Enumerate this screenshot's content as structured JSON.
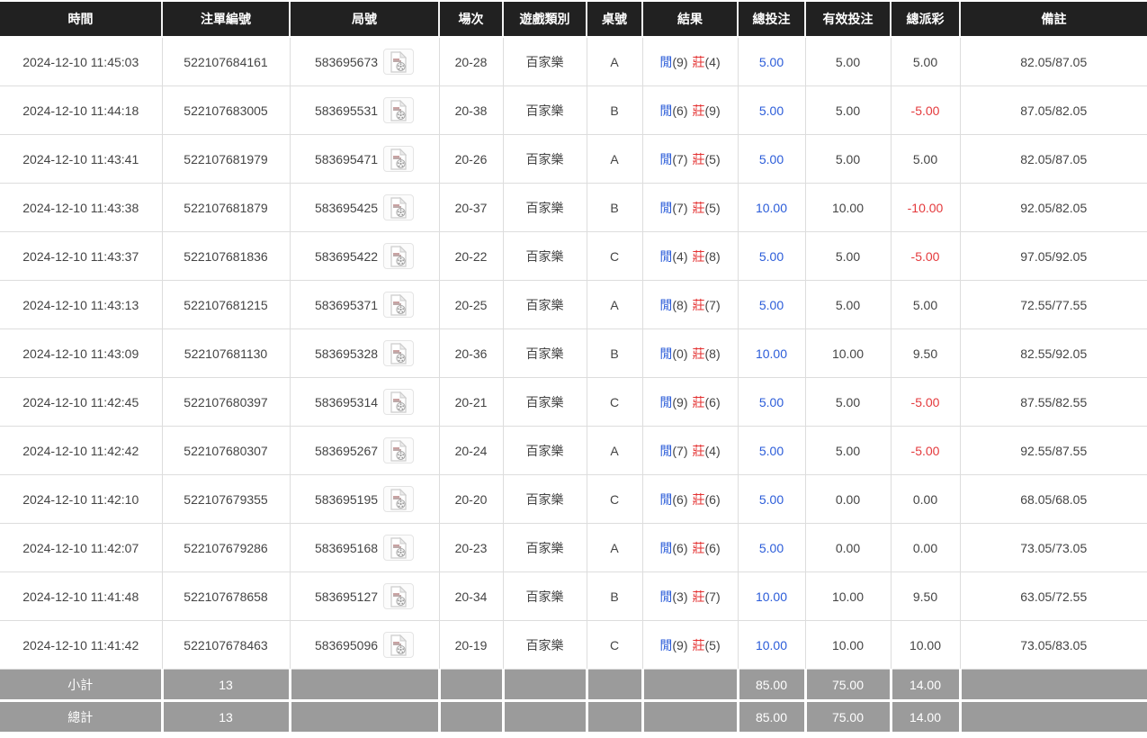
{
  "table": {
    "columns": [
      {
        "key": "time",
        "label": "時間"
      },
      {
        "key": "bet_no",
        "label": "注單編號"
      },
      {
        "key": "round_no",
        "label": "局號"
      },
      {
        "key": "session",
        "label": "場次"
      },
      {
        "key": "game",
        "label": "遊戲類別"
      },
      {
        "key": "table_no",
        "label": "桌號"
      },
      {
        "key": "result",
        "label": "結果"
      },
      {
        "key": "total_bet",
        "label": "總投注"
      },
      {
        "key": "valid_bet",
        "label": "有效投注"
      },
      {
        "key": "payout",
        "label": "總派彩"
      },
      {
        "key": "remark",
        "label": "備註"
      }
    ],
    "result_labels": {
      "player": "閒",
      "banker": "莊"
    },
    "rows": [
      {
        "time": "2024-12-10 11:45:03",
        "bet_no": "522107684161",
        "round_no": "583695673",
        "session": "20-28",
        "game": "百家樂",
        "table_no": "A",
        "player": "9",
        "banker": "4",
        "total_bet": "5.00",
        "valid_bet": "5.00",
        "payout": "5.00",
        "remark": "82.05/87.05"
      },
      {
        "time": "2024-12-10 11:44:18",
        "bet_no": "522107683005",
        "round_no": "583695531",
        "session": "20-38",
        "game": "百家樂",
        "table_no": "B",
        "player": "6",
        "banker": "9",
        "total_bet": "5.00",
        "valid_bet": "5.00",
        "payout": "-5.00",
        "remark": "87.05/82.05"
      },
      {
        "time": "2024-12-10 11:43:41",
        "bet_no": "522107681979",
        "round_no": "583695471",
        "session": "20-26",
        "game": "百家樂",
        "table_no": "A",
        "player": "7",
        "banker": "5",
        "total_bet": "5.00",
        "valid_bet": "5.00",
        "payout": "5.00",
        "remark": "82.05/87.05"
      },
      {
        "time": "2024-12-10 11:43:38",
        "bet_no": "522107681879",
        "round_no": "583695425",
        "session": "20-37",
        "game": "百家樂",
        "table_no": "B",
        "player": "7",
        "banker": "5",
        "total_bet": "10.00",
        "valid_bet": "10.00",
        "payout": "-10.00",
        "remark": "92.05/82.05"
      },
      {
        "time": "2024-12-10 11:43:37",
        "bet_no": "522107681836",
        "round_no": "583695422",
        "session": "20-22",
        "game": "百家樂",
        "table_no": "C",
        "player": "4",
        "banker": "8",
        "total_bet": "5.00",
        "valid_bet": "5.00",
        "payout": "-5.00",
        "remark": "97.05/92.05"
      },
      {
        "time": "2024-12-10 11:43:13",
        "bet_no": "522107681215",
        "round_no": "583695371",
        "session": "20-25",
        "game": "百家樂",
        "table_no": "A",
        "player": "8",
        "banker": "7",
        "total_bet": "5.00",
        "valid_bet": "5.00",
        "payout": "5.00",
        "remark": "72.55/77.55"
      },
      {
        "time": "2024-12-10 11:43:09",
        "bet_no": "522107681130",
        "round_no": "583695328",
        "session": "20-36",
        "game": "百家樂",
        "table_no": "B",
        "player": "0",
        "banker": "8",
        "total_bet": "10.00",
        "valid_bet": "10.00",
        "payout": "9.50",
        "remark": "82.55/92.05"
      },
      {
        "time": "2024-12-10 11:42:45",
        "bet_no": "522107680397",
        "round_no": "583695314",
        "session": "20-21",
        "game": "百家樂",
        "table_no": "C",
        "player": "9",
        "banker": "6",
        "total_bet": "5.00",
        "valid_bet": "5.00",
        "payout": "-5.00",
        "remark": "87.55/82.55"
      },
      {
        "time": "2024-12-10 11:42:42",
        "bet_no": "522107680307",
        "round_no": "583695267",
        "session": "20-24",
        "game": "百家樂",
        "table_no": "A",
        "player": "7",
        "banker": "4",
        "total_bet": "5.00",
        "valid_bet": "5.00",
        "payout": "-5.00",
        "remark": "92.55/87.55"
      },
      {
        "time": "2024-12-10 11:42:10",
        "bet_no": "522107679355",
        "round_no": "583695195",
        "session": "20-20",
        "game": "百家樂",
        "table_no": "C",
        "player": "6",
        "banker": "6",
        "total_bet": "5.00",
        "valid_bet": "0.00",
        "payout": "0.00",
        "remark": "68.05/68.05"
      },
      {
        "time": "2024-12-10 11:42:07",
        "bet_no": "522107679286",
        "round_no": "583695168",
        "session": "20-23",
        "game": "百家樂",
        "table_no": "A",
        "player": "6",
        "banker": "6",
        "total_bet": "5.00",
        "valid_bet": "0.00",
        "payout": "0.00",
        "remark": "73.05/73.05"
      },
      {
        "time": "2024-12-10 11:41:48",
        "bet_no": "522107678658",
        "round_no": "583695127",
        "session": "20-34",
        "game": "百家樂",
        "table_no": "B",
        "player": "3",
        "banker": "7",
        "total_bet": "10.00",
        "valid_bet": "10.00",
        "payout": "9.50",
        "remark": "63.05/72.55"
      },
      {
        "time": "2024-12-10 11:41:42",
        "bet_no": "522107678463",
        "round_no": "583695096",
        "session": "20-19",
        "game": "百家樂",
        "table_no": "C",
        "player": "9",
        "banker": "5",
        "total_bet": "10.00",
        "valid_bet": "10.00",
        "payout": "10.00",
        "remark": "73.05/83.05"
      }
    ],
    "footer": [
      {
        "name": "subtotal-row",
        "label": "小計",
        "count": "13",
        "total_bet": "85.00",
        "valid_bet": "75.00",
        "payout": "14.00"
      },
      {
        "name": "total-row",
        "label": "總計",
        "count": "13",
        "total_bet": "85.00",
        "valid_bet": "75.00",
        "payout": "14.00"
      }
    ],
    "colors": {
      "header_bg": "#212121",
      "footer_bg": "#9b9b9b",
      "link_blue": "#2b5cd9",
      "loss_red": "#e4393c",
      "player_blue": "#2b5cd9",
      "banker_red": "#e43333",
      "row_border": "#dddddd"
    },
    "icons": {
      "replay": "video-file-icon"
    }
  }
}
